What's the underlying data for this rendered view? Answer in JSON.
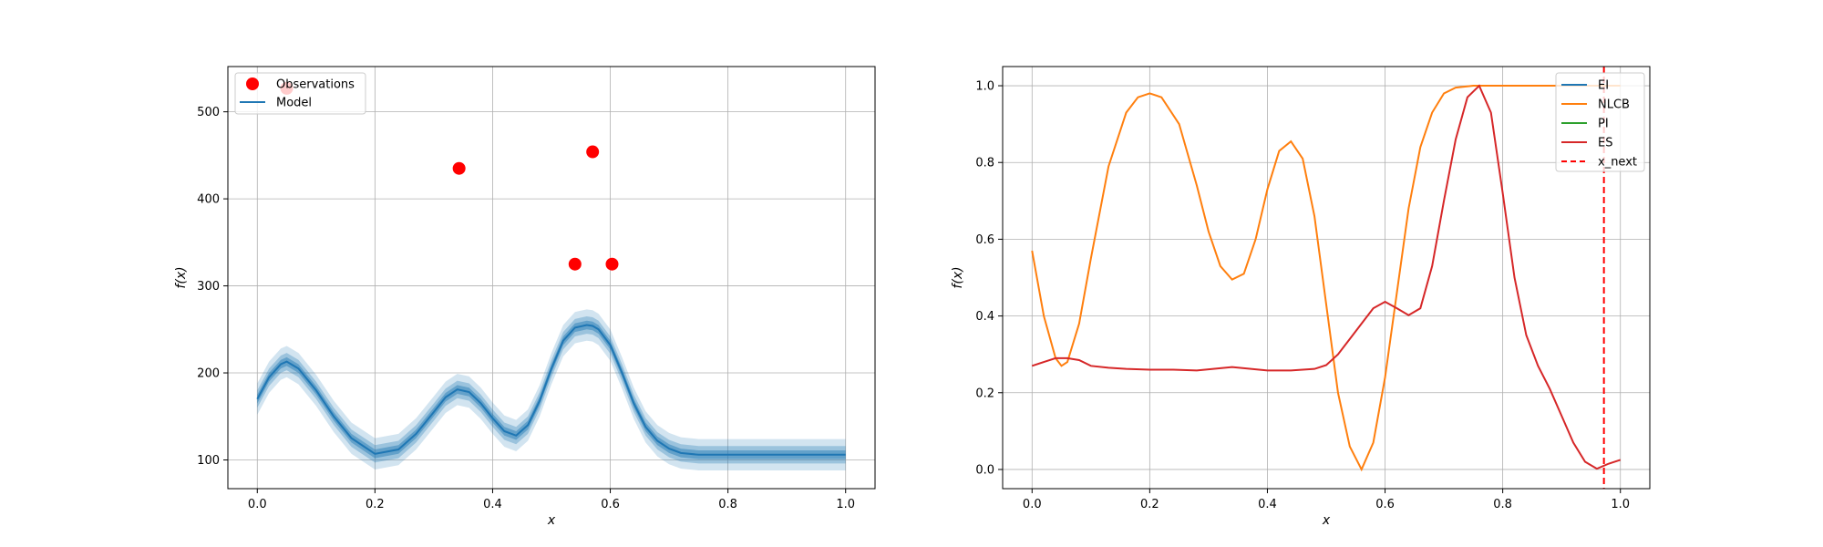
{
  "chart_data": [
    {
      "type": "line",
      "title": "",
      "xlabel": "x",
      "ylabel": "f(x)",
      "xlim": [
        -0.05,
        1.05
      ],
      "ylim": [
        67,
        552
      ],
      "xticks": [
        "0.0",
        "0.2",
        "0.4",
        "0.6",
        "0.8",
        "1.0"
      ],
      "xtick_values": [
        0,
        0.2,
        0.4,
        0.6,
        0.8,
        1.0
      ],
      "yticks": [
        "100",
        "200",
        "300",
        "400",
        "500"
      ],
      "ytick_values": [
        100,
        200,
        300,
        400,
        500
      ],
      "grid": true,
      "legend": {
        "location": "upper-left",
        "entries": [
          "Observations",
          "Model"
        ]
      },
      "observations": {
        "name": "Observations",
        "color": "#ff0000",
        "x": [
          0.05,
          0.343,
          0.54,
          0.57,
          0.603
        ],
        "y": [
          527,
          435,
          325,
          454,
          325
        ]
      },
      "model": {
        "name": "Model",
        "color": "#1f77b4",
        "band_half_widths": [
          5,
          10,
          18
        ],
        "band_opacities": [
          0.45,
          0.3,
          0.2
        ],
        "x": [
          0,
          0.02,
          0.04,
          0.05,
          0.07,
          0.1,
          0.13,
          0.16,
          0.2,
          0.24,
          0.27,
          0.3,
          0.32,
          0.34,
          0.36,
          0.38,
          0.4,
          0.42,
          0.44,
          0.46,
          0.48,
          0.5,
          0.52,
          0.54,
          0.56,
          0.57,
          0.58,
          0.6,
          0.62,
          0.64,
          0.66,
          0.68,
          0.7,
          0.72,
          0.75,
          0.8,
          0.85,
          0.9,
          0.95,
          1.0
        ],
        "y": [
          170,
          195,
          210,
          213,
          205,
          180,
          150,
          125,
          107,
          112,
          130,
          155,
          172,
          181,
          178,
          165,
          148,
          133,
          128,
          140,
          168,
          205,
          237,
          252,
          255,
          254,
          250,
          232,
          200,
          165,
          138,
          122,
          113,
          108,
          106,
          106,
          106,
          106,
          106,
          106
        ]
      }
    },
    {
      "type": "line",
      "title": "",
      "xlabel": "x",
      "ylabel": "f(x)",
      "xlim": [
        -0.05,
        1.05
      ],
      "ylim": [
        -0.05,
        1.05
      ],
      "xticks": [
        "0.0",
        "0.2",
        "0.4",
        "0.6",
        "0.8",
        "1.0"
      ],
      "xtick_values": [
        0,
        0.2,
        0.4,
        0.6,
        0.8,
        1.0
      ],
      "yticks": [
        "0.0",
        "0.2",
        "0.4",
        "0.6",
        "0.8",
        "1.0"
      ],
      "ytick_values": [
        0,
        0.2,
        0.4,
        0.6,
        0.8,
        1.0
      ],
      "grid": true,
      "legend": {
        "location": "upper-right",
        "entries": [
          "EI",
          "NLCB",
          "PI",
          "ES",
          "x_next"
        ]
      },
      "x_next": 0.972,
      "series": [
        {
          "name": "EI",
          "color": "#1f77b4",
          "x": [],
          "y": []
        },
        {
          "name": "NLCB",
          "color": "#ff7f0e",
          "x": [
            0,
            0.02,
            0.04,
            0.05,
            0.06,
            0.08,
            0.1,
            0.13,
            0.16,
            0.18,
            0.2,
            0.22,
            0.25,
            0.28,
            0.3,
            0.32,
            0.34,
            0.36,
            0.38,
            0.4,
            0.42,
            0.44,
            0.46,
            0.48,
            0.5,
            0.52,
            0.54,
            0.56,
            0.58,
            0.6,
            0.62,
            0.64,
            0.66,
            0.68,
            0.7,
            0.72,
            0.75,
            0.8,
            1.0
          ],
          "y": [
            0.57,
            0.4,
            0.29,
            0.27,
            0.28,
            0.38,
            0.55,
            0.79,
            0.93,
            0.97,
            0.98,
            0.97,
            0.9,
            0.74,
            0.62,
            0.53,
            0.495,
            0.51,
            0.6,
            0.73,
            0.83,
            0.855,
            0.81,
            0.66,
            0.43,
            0.2,
            0.06,
            0.0,
            0.07,
            0.24,
            0.46,
            0.68,
            0.84,
            0.93,
            0.98,
            0.995,
            1.0,
            1.0,
            1.0
          ]
        },
        {
          "name": "PI",
          "color": "#2ca02c",
          "x": [],
          "y": []
        },
        {
          "name": "ES",
          "color": "#d62728",
          "x": [
            0,
            0.02,
            0.04,
            0.06,
            0.08,
            0.1,
            0.13,
            0.16,
            0.2,
            0.24,
            0.28,
            0.32,
            0.34,
            0.36,
            0.4,
            0.44,
            0.48,
            0.5,
            0.52,
            0.54,
            0.56,
            0.58,
            0.6,
            0.62,
            0.64,
            0.66,
            0.68,
            0.7,
            0.72,
            0.74,
            0.76,
            0.78,
            0.8,
            0.82,
            0.84,
            0.86,
            0.88,
            0.9,
            0.92,
            0.94,
            0.96,
            0.98,
            1.0
          ],
          "y": [
            0.27,
            0.28,
            0.29,
            0.29,
            0.285,
            0.27,
            0.265,
            0.262,
            0.26,
            0.26,
            0.258,
            0.264,
            0.267,
            0.264,
            0.258,
            0.258,
            0.262,
            0.272,
            0.3,
            0.34,
            0.38,
            0.42,
            0.437,
            0.42,
            0.402,
            0.42,
            0.53,
            0.7,
            0.86,
            0.97,
            1.0,
            0.93,
            0.72,
            0.5,
            0.35,
            0.27,
            0.21,
            0.14,
            0.07,
            0.02,
            0.002,
            0.015,
            0.025
          ]
        }
      ]
    }
  ]
}
